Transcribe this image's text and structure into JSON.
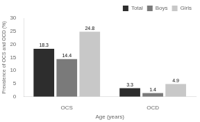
{
  "chart_data": {
    "type": "bar",
    "categories": [
      "OCS",
      "OCD"
    ],
    "series": [
      {
        "name": "Total",
        "color": "#2d2d2d",
        "values": [
          18.3,
          3.3
        ]
      },
      {
        "name": "Boys",
        "color": "#7a7a7a",
        "values": [
          14.4,
          1.4
        ]
      },
      {
        "name": "Girls",
        "color": "#c8c8c8",
        "values": [
          24.8,
          4.9
        ]
      }
    ],
    "xlabel": "Age (years)",
    "ylabel": "Prevalence of OCS and OCD (%)",
    "ylim": [
      0,
      30
    ],
    "yticks": [
      0,
      5,
      10,
      15,
      20,
      25,
      30
    ],
    "grid": false,
    "legend": "upper right",
    "data_labels": true
  }
}
